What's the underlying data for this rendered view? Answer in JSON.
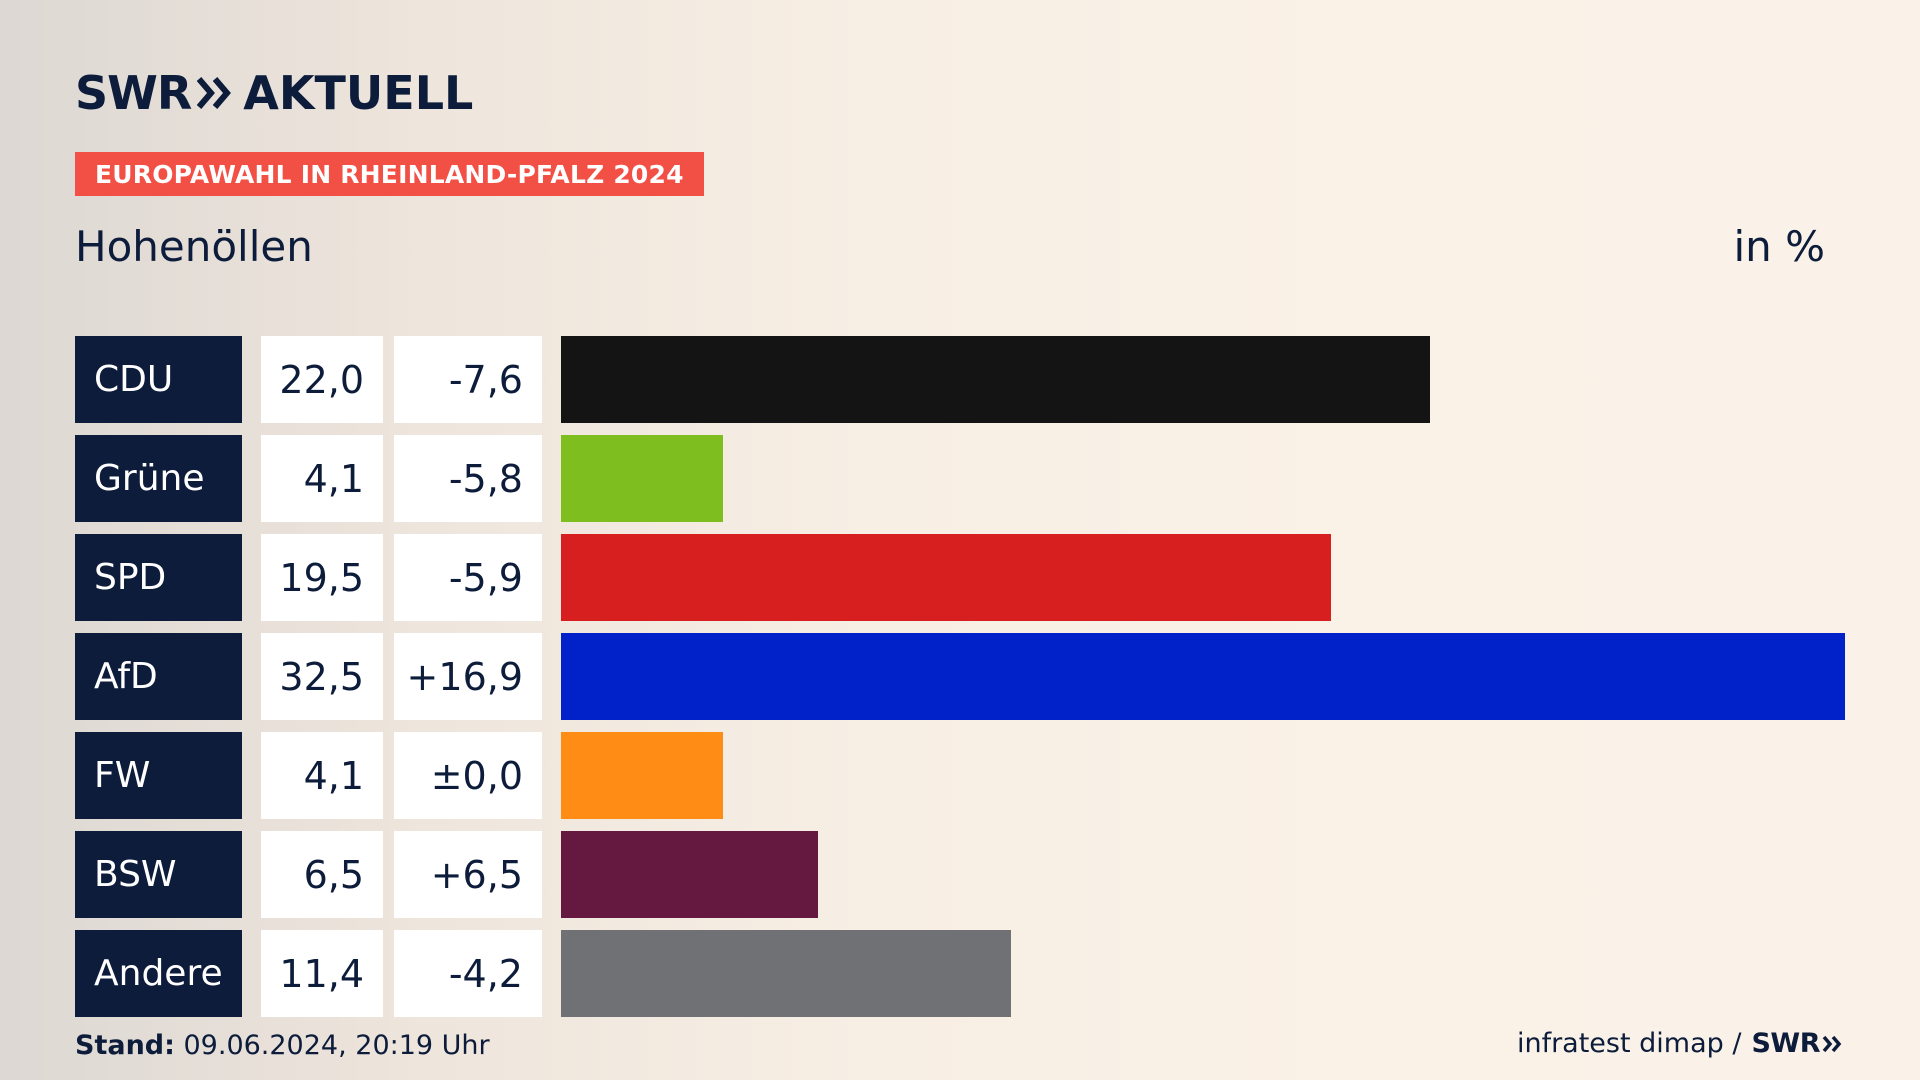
{
  "logo": {
    "swr": "SWR",
    "aktuell": "AKTUELL"
  },
  "tag": "EUROPAWAHL IN RHEINLAND-PFALZ 2024",
  "region": "Hohenöllen",
  "unit": "in %",
  "footer": {
    "stand_label": "Stand:",
    "stand_value": " 09.06.2024, 20:19 Uhr",
    "source": "infratest dimap /",
    "source_brand": "SWR"
  },
  "chart_data": {
    "type": "bar",
    "orientation": "horizontal",
    "title": "Hohenöllen",
    "unit": "in %",
    "categories": [
      "CDU",
      "Grüne",
      "SPD",
      "AfD",
      "FW",
      "BSW",
      "Andere"
    ],
    "values": [
      22.0,
      4.1,
      19.5,
      32.5,
      4.1,
      6.5,
      11.4
    ],
    "value_labels": [
      "22,0",
      "4,1",
      "19,5",
      "32,5",
      "4,1",
      "6,5",
      "11,4"
    ],
    "diff_labels": [
      "-7,6",
      "-5,8",
      "-5,9",
      "+16,9",
      "±0,0",
      "+6,5",
      "-4,2"
    ],
    "colors": [
      "#141414",
      "#7ebe1e",
      "#d71f1f",
      "#0022c8",
      "#ff8c14",
      "#661940",
      "#707174"
    ],
    "xlim": [
      0,
      32.5
    ]
  }
}
